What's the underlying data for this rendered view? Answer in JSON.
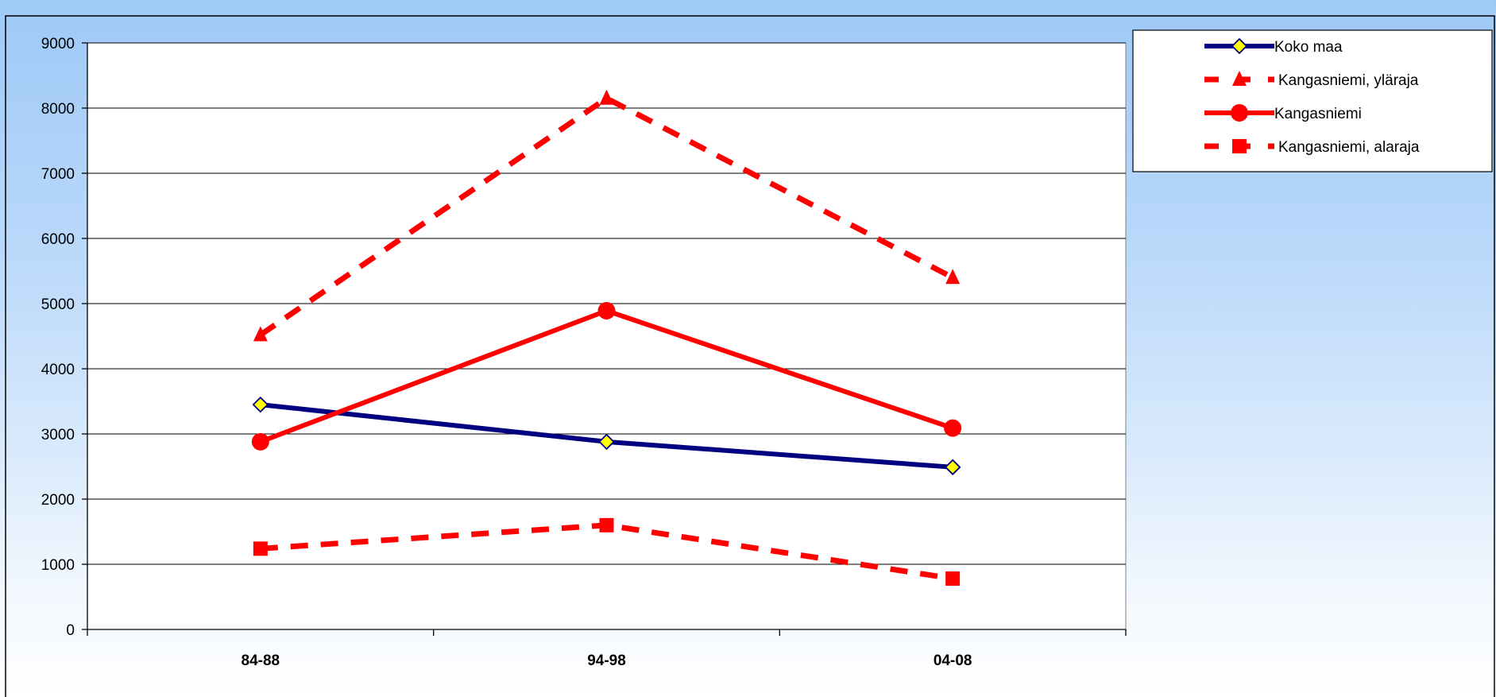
{
  "colors": {
    "koko_maa": "#000080",
    "kangasniemi": "#ff0000",
    "diamond_fill": "#ffff00"
  },
  "chart_data": {
    "type": "line",
    "title": "",
    "xlabel": "",
    "ylabel": "",
    "categories": [
      "84-88",
      "94-98",
      "04-08"
    ],
    "ylim": [
      0,
      9000
    ],
    "yticks": [
      0,
      1000,
      2000,
      3000,
      4000,
      5000,
      6000,
      7000,
      8000,
      9000
    ],
    "grid": true,
    "legend_position": "top-right",
    "series": [
      {
        "name": "Koko maa",
        "values": [
          3450,
          2880,
          2490
        ],
        "color": "#000080",
        "dashed": false,
        "marker": "diamond"
      },
      {
        "name": "Kangasniemi, yläraja",
        "values": [
          4520,
          8150,
          5400
        ],
        "color": "#ff0000",
        "dashed": true,
        "marker": "triangle"
      },
      {
        "name": "Kangasniemi",
        "values": [
          2880,
          4890,
          3090
        ],
        "color": "#ff0000",
        "dashed": false,
        "marker": "circle"
      },
      {
        "name": "Kangasniemi, alaraja",
        "values": [
          1240,
          1600,
          780
        ],
        "color": "#ff0000",
        "dashed": true,
        "marker": "square"
      }
    ]
  }
}
